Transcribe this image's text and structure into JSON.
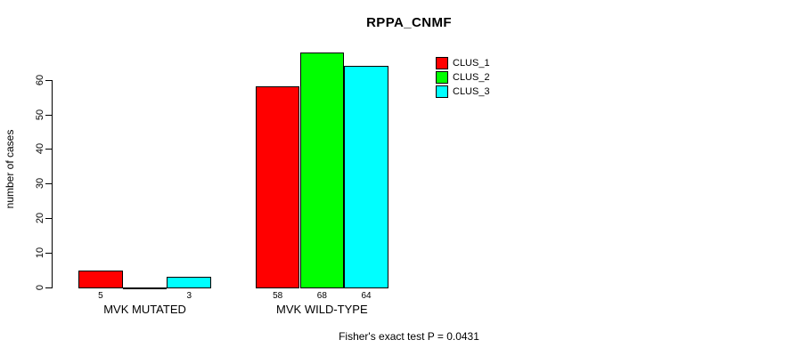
{
  "chart_data": {
    "type": "bar",
    "title": "RPPA_CNMF",
    "ylabel": "number of cases",
    "xlabel": "",
    "categories": [
      "MVK MUTATED",
      "MVK WILD-TYPE"
    ],
    "series": [
      {
        "name": "CLUS_1",
        "color": "#ff0000",
        "values": [
          5,
          58
        ]
      },
      {
        "name": "CLUS_2",
        "color": "#00ff00",
        "values": [
          0,
          68
        ]
      },
      {
        "name": "CLUS_3",
        "color": "#00ffff",
        "values": [
          3,
          64
        ]
      }
    ],
    "bar_value_labels": [
      [
        "5",
        "",
        "3"
      ],
      [
        "58",
        "68",
        "64"
      ]
    ],
    "y_ticks": [
      0,
      10,
      20,
      30,
      40,
      50,
      60
    ],
    "ylim": [
      0,
      68
    ],
    "grid": false,
    "legend_position": "top-right",
    "bar_border_color": "#000000",
    "annotation": "Fisher's exact test P = 0.0431"
  }
}
